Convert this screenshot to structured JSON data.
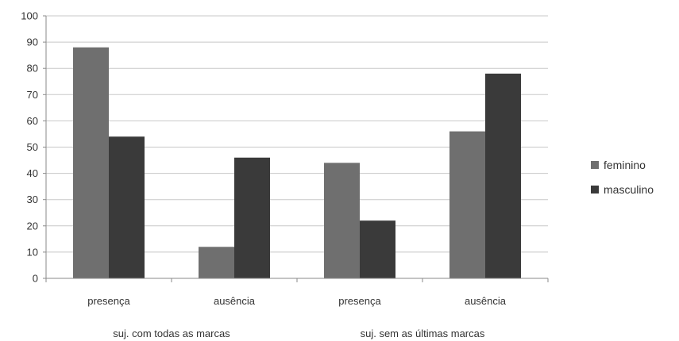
{
  "chart_data": {
    "type": "bar",
    "categories": [
      "presença",
      "ausência",
      "presença",
      "ausência"
    ],
    "groups": [
      {
        "label": "suj. com todas as marcas",
        "categories": [
          0,
          1
        ]
      },
      {
        "label": "suj. sem as últimas marcas",
        "categories": [
          2,
          3
        ]
      }
    ],
    "series": [
      {
        "name": "feminino",
        "color": "#6f6f6f",
        "values": [
          88,
          12,
          44,
          56
        ]
      },
      {
        "name": "masculino",
        "color": "#3a3a3a",
        "values": [
          54,
          46,
          22,
          78
        ]
      }
    ],
    "ylim": [
      0,
      100
    ],
    "yticks": [
      0,
      10,
      20,
      30,
      40,
      50,
      60,
      70,
      80,
      90,
      100
    ],
    "grid": true,
    "legend": "right"
  }
}
